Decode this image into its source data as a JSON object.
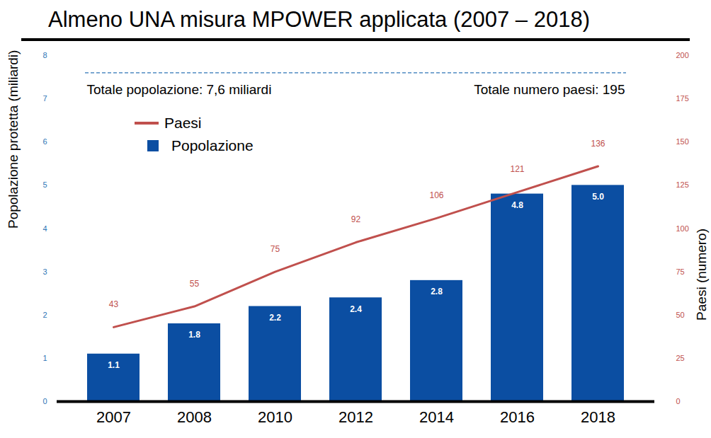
{
  "chart_data": {
    "type": "bar",
    "title": "Almeno UNA misura MPOWER applicata (2007 – 2018)",
    "categories": [
      "2007",
      "2008",
      "2010",
      "2012",
      "2014",
      "2016",
      "2018"
    ],
    "series": [
      {
        "name": "Paesi",
        "type": "line",
        "axis": "y2",
        "color": "#c0504d",
        "values": [
          43,
          55,
          75,
          92,
          106,
          121,
          136
        ]
      },
      {
        "name": "Popolazione",
        "type": "bar",
        "color": "#0b4ea2",
        "values": [
          1.1,
          1.8,
          2.2,
          2.4,
          2.8,
          4.8,
          5.0
        ],
        "value_labels": [
          "1.1",
          "1.8",
          "2.2",
          "2.4",
          "2.8",
          "4.8",
          "5.0"
        ]
      }
    ],
    "ylabel": "Popolazione protetta (miliardi)",
    "y2label": "Paesi (numero)",
    "ylim": [
      0,
      8
    ],
    "yticks": [
      0,
      1,
      2,
      3,
      4,
      5,
      6,
      7,
      8
    ],
    "y2lim": [
      0,
      200
    ],
    "y2ticks": [
      0,
      25,
      50,
      75,
      100,
      125,
      150,
      175,
      200
    ],
    "data_labels": true,
    "legend": "upper left",
    "reference_lines": [
      {
        "value": 7.6,
        "line_style": "dashed"
      }
    ],
    "annotations": [
      {
        "text": "Totale popolazione: 7,6 miliardi"
      },
      {
        "text": "Totale numero paesi: 195"
      }
    ]
  }
}
